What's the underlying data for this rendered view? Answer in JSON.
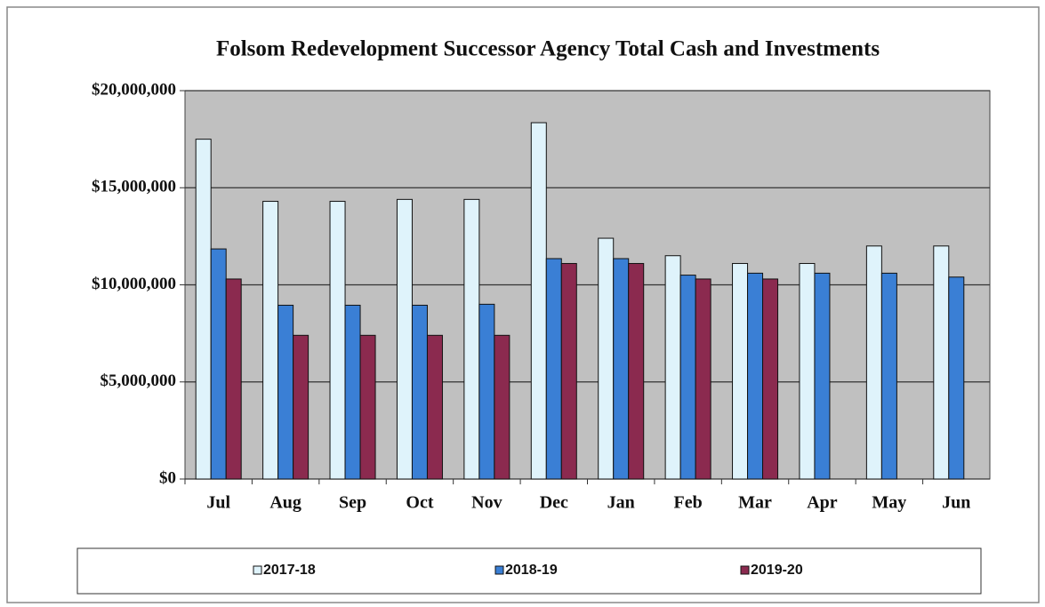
{
  "chart_data": {
    "type": "bar",
    "title": "Folsom Redevelopment Successor Agency Total Cash and Investments",
    "categories": [
      "Jul",
      "Aug",
      "Sep",
      "Oct",
      "Nov",
      "Dec",
      "Jan",
      "Feb",
      "Mar",
      "Apr",
      "May",
      "Jun"
    ],
    "series": [
      {
        "name": "2017-18",
        "color": "#dff3fb",
        "values": [
          17500000,
          14300000,
          14300000,
          14400000,
          14400000,
          18350000,
          12400000,
          11500000,
          11100000,
          11100000,
          12000000,
          12000000
        ]
      },
      {
        "name": "2018-19",
        "color": "#3a7fd5",
        "values": [
          11850000,
          8950000,
          8950000,
          8950000,
          9000000,
          11350000,
          11350000,
          10500000,
          10600000,
          10600000,
          10600000,
          10400000
        ]
      },
      {
        "name": "2019-20",
        "color": "#8b2a4f",
        "values": [
          10300000,
          7400000,
          7400000,
          7400000,
          7400000,
          11100000,
          11100000,
          10300000,
          10300000,
          null,
          null,
          null
        ]
      }
    ],
    "ylim": [
      0,
      20000000
    ],
    "yticks": [
      {
        "value": 0,
        "label": "$0"
      },
      {
        "value": 5000000,
        "label": "$5,000,000"
      },
      {
        "value": 10000000,
        "label": "$10,000,000"
      },
      {
        "value": 15000000,
        "label": "$15,000,000"
      },
      {
        "value": 20000000,
        "label": "$20,000,000"
      }
    ],
    "grid": true
  }
}
